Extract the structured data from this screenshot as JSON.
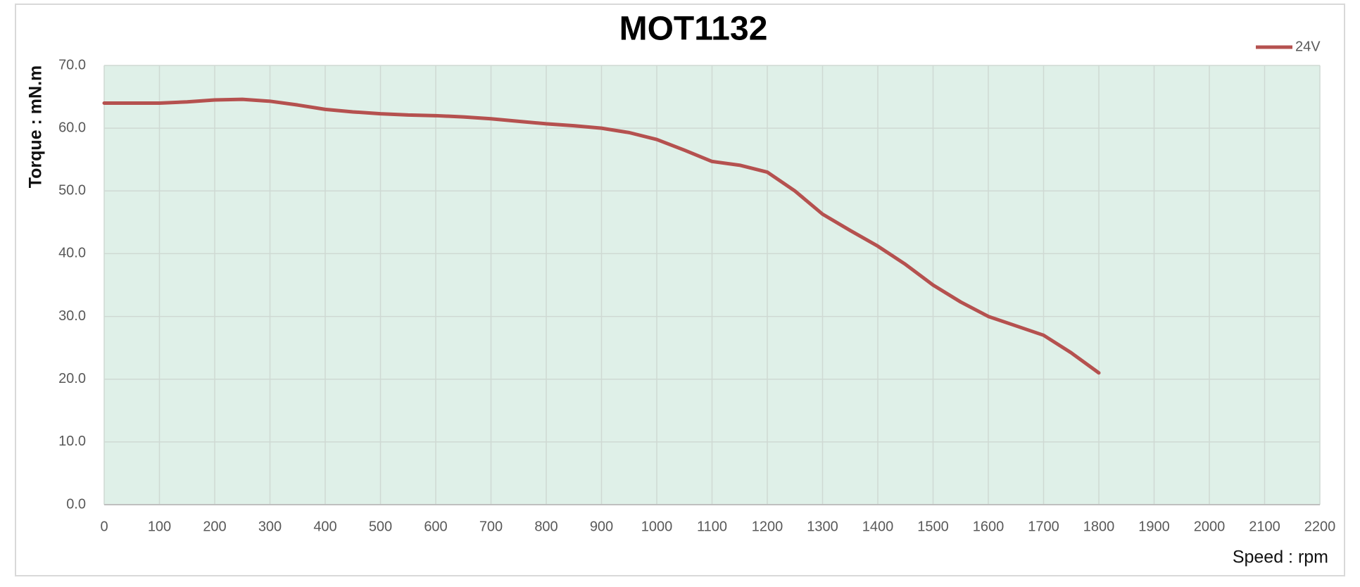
{
  "chart_data": {
    "type": "line",
    "title": "MOT1132",
    "x_label": "Speed : rpm",
    "y_label": "Torque : mN.m",
    "x": [
      0,
      50,
      100,
      150,
      200,
      250,
      300,
      350,
      400,
      450,
      500,
      550,
      600,
      650,
      700,
      750,
      800,
      850,
      900,
      950,
      1000,
      1050,
      1100,
      1150,
      1200,
      1250,
      1300,
      1350,
      1400,
      1450,
      1500,
      1550,
      1600,
      1650,
      1700,
      1750,
      1800
    ],
    "series": [
      {
        "name": "24V",
        "color": "#b5514f",
        "values": [
          64.0,
          64.0,
          64.0,
          64.2,
          64.5,
          64.6,
          64.3,
          63.7,
          63.0,
          62.6,
          62.3,
          62.1,
          62.0,
          61.8,
          61.5,
          61.1,
          60.7,
          60.4,
          60.0,
          59.3,
          58.2,
          56.5,
          54.7,
          54.1,
          53.0,
          50.0,
          46.3,
          43.7,
          41.2,
          38.3,
          35.0,
          32.3,
          30.0,
          28.5,
          27.0,
          24.2,
          21.0
        ]
      }
    ],
    "xlim": [
      0,
      2200
    ],
    "xticks": [
      0,
      100,
      200,
      300,
      400,
      500,
      600,
      700,
      800,
      900,
      1000,
      1100,
      1200,
      1300,
      1400,
      1500,
      1600,
      1700,
      1800,
      1900,
      2000,
      2100,
      2200
    ],
    "ylim": [
      0,
      70
    ],
    "yticks": [
      {
        "value": 0,
        "label": "0.0"
      },
      {
        "value": 10,
        "label": "10.0"
      },
      {
        "value": 20,
        "label": "20.0"
      },
      {
        "value": 30,
        "label": "30.0"
      },
      {
        "value": 40,
        "label": "40.0"
      },
      {
        "value": 50,
        "label": "50.0"
      },
      {
        "value": 60,
        "label": "60.0"
      },
      {
        "value": 70,
        "label": "70.0"
      }
    ],
    "grid": true,
    "plot_background": "#dff0e8",
    "legend": "top-right"
  }
}
